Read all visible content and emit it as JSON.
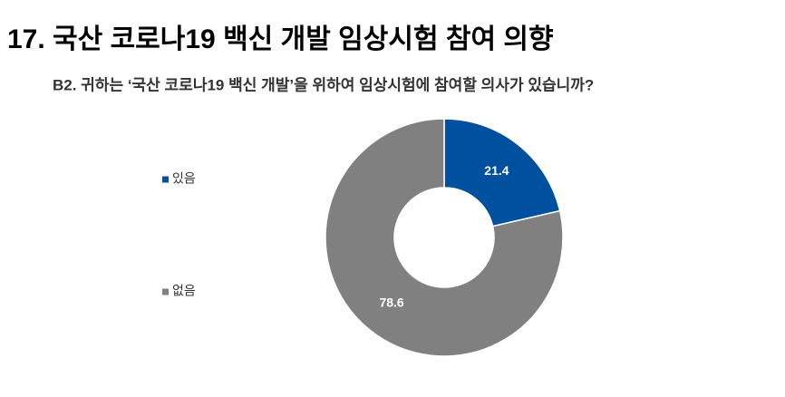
{
  "chart_data": {
    "type": "donut",
    "title": "17. 국산 코로나19 백신 개발 임상시험 참여 의향",
    "subtitle": "B2. 귀하는 ‘국산 코로나19 백신 개발’을 위하여 임상시험에 참여할 의사가 있습니까?",
    "categories": [
      "있음",
      "없음"
    ],
    "values": [
      21.4,
      78.6
    ],
    "colors": [
      "#0050a0",
      "#808080"
    ],
    "legend": "left"
  }
}
